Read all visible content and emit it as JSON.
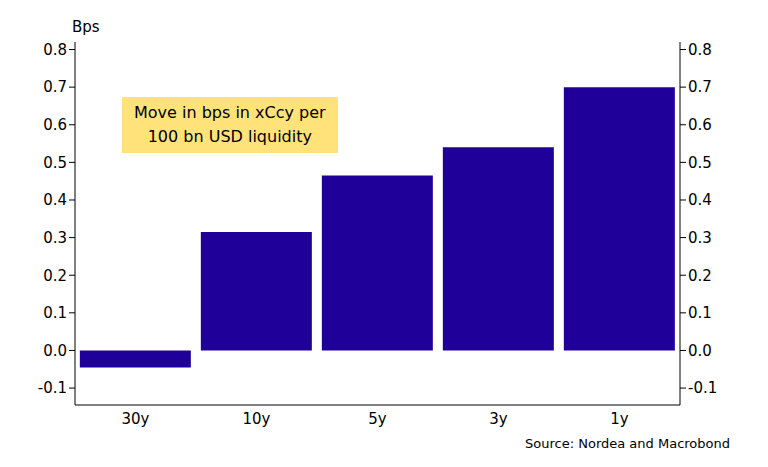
{
  "chart_data": {
    "type": "bar",
    "ylabel": "Bps",
    "annotation": [
      "Move in bps in xCcy per",
      "100 bn USD liquidity"
    ],
    "source": "Source: Nordea and Macrobond",
    "categories": [
      "30y",
      "10y",
      "5y",
      "3y",
      "1y"
    ],
    "values": [
      -0.045,
      0.315,
      0.465,
      0.54,
      0.7
    ],
    "color": "#1f0099",
    "ylim": [
      -0.145,
      0.82
    ],
    "yticks": [
      -0.1,
      {
        "value": 0,
        "label": "0.0"
      },
      0.1,
      0.2,
      0.3,
      0.4,
      0.5,
      0.6,
      0.7,
      0.8
    ],
    "grid": false
  }
}
